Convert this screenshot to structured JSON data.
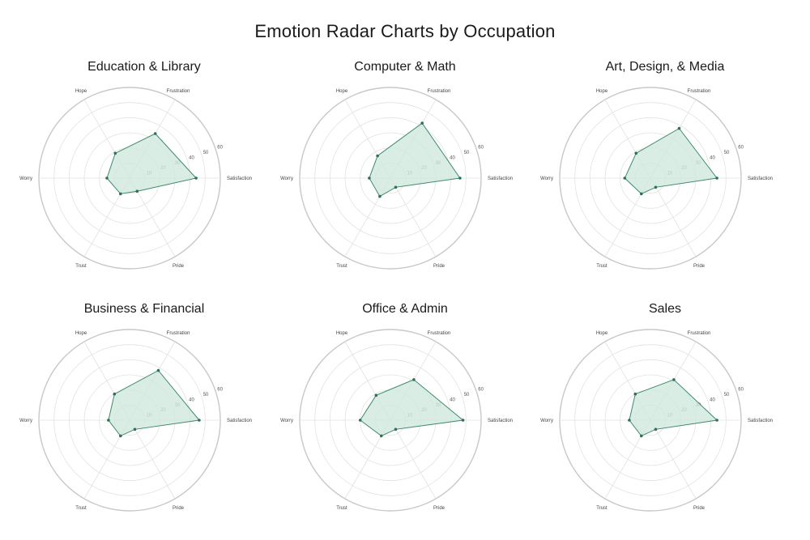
{
  "title": "Emotion Radar Charts by Occupation",
  "colors": {
    "fill": "#cfe8de",
    "stroke": "#3d8a6c",
    "point": "#2f6f58",
    "grid": "#e2e2e2",
    "outer": "#c8c8c8"
  },
  "chart_data": [
    {
      "type": "radar",
      "title": "Education & Library",
      "axes": [
        "Satisfaction",
        "Frustration",
        "Hope",
        "Worry",
        "Trust",
        "Pride"
      ],
      "rlim": [
        0,
        60
      ],
      "rticks": [
        "10",
        "20",
        "30",
        "40",
        "50",
        "60"
      ],
      "values": [
        44,
        34,
        19,
        15,
        12,
        10
      ]
    },
    {
      "type": "radar",
      "title": "Computer & Math",
      "axes": [
        "Satisfaction",
        "Frustration",
        "Hope",
        "Worry",
        "Trust",
        "Pride"
      ],
      "rlim": [
        0,
        60
      ],
      "rticks": [
        "10",
        "20",
        "30",
        "40",
        "50",
        "60"
      ],
      "values": [
        46,
        42,
        17,
        14,
        14,
        7
      ]
    },
    {
      "type": "radar",
      "title": "Art, Design, & Media",
      "axes": [
        "Satisfaction",
        "Frustration",
        "Hope",
        "Worry",
        "Trust",
        "Pride"
      ],
      "rlim": [
        0,
        60
      ],
      "rticks": [
        "10",
        "20",
        "30",
        "40",
        "50",
        "60"
      ],
      "values": [
        44,
        38,
        19,
        17,
        12,
        7
      ]
    },
    {
      "type": "radar",
      "title": "Business & Financial",
      "axes": [
        "Satisfaction",
        "Frustration",
        "Hope",
        "Worry",
        "Trust",
        "Pride"
      ],
      "rlim": [
        0,
        60
      ],
      "rticks": [
        "10",
        "20",
        "30",
        "40",
        "50",
        "60"
      ],
      "values": [
        46,
        38,
        20,
        14,
        12,
        7
      ]
    },
    {
      "type": "radar",
      "title": "Office & Admin",
      "axes": [
        "Satisfaction",
        "Frustration",
        "Hope",
        "Worry",
        "Trust",
        "Pride"
      ],
      "rlim": [
        0,
        60
      ],
      "rticks": [
        "10",
        "20",
        "30",
        "40",
        "50",
        "60"
      ],
      "values": [
        48,
        31,
        19,
        20,
        12,
        7
      ]
    },
    {
      "type": "radar",
      "title": "Sales",
      "axes": [
        "Satisfaction",
        "Frustration",
        "Hope",
        "Worry",
        "Trust",
        "Pride"
      ],
      "rlim": [
        0,
        60
      ],
      "rticks": [
        "10",
        "20",
        "30",
        "40",
        "50",
        "60"
      ],
      "values": [
        44,
        31,
        20,
        14,
        12,
        7
      ]
    }
  ]
}
